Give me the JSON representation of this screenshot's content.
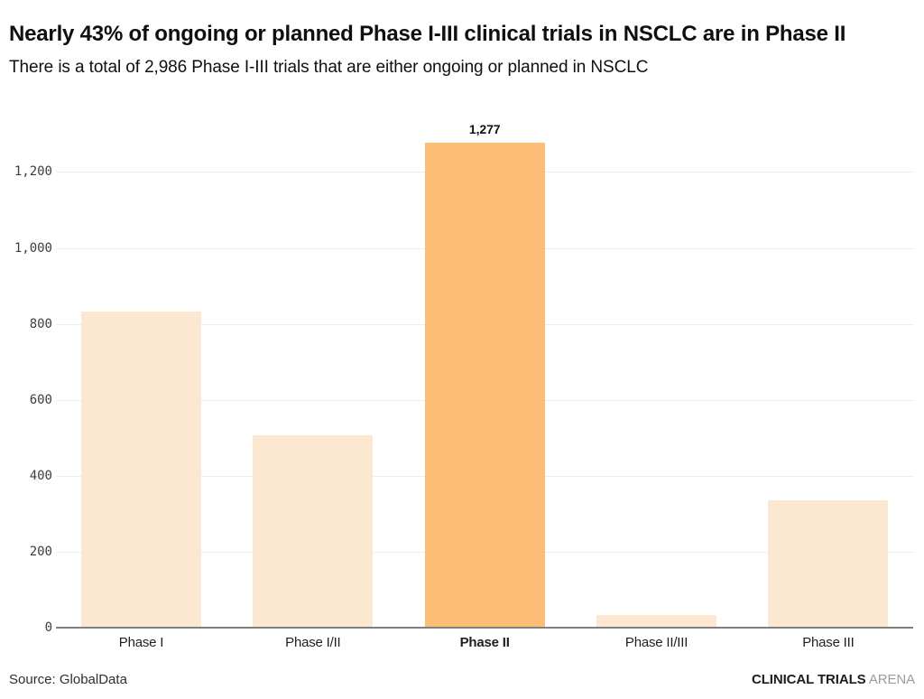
{
  "header": {
    "title": "Nearly 43% of ongoing or planned Phase I-III clinical trials in NSCLC are in Phase II",
    "subtitle": "There is a total of 2,986 Phase I-III trials that are either ongoing or planned in NSCLC"
  },
  "chart_data": {
    "type": "bar",
    "categories": [
      "Phase I",
      "Phase I/II",
      "Phase II",
      "Phase II/III",
      "Phase III"
    ],
    "values": [
      833,
      507,
      1277,
      34,
      335
    ],
    "total_stated": 2986,
    "highlight_index": 2,
    "data_labels": {
      "2": "1,277"
    },
    "title": "Nearly 43% of ongoing or planned Phase I-III clinical trials in NSCLC are in Phase II",
    "xlabel": "",
    "ylabel": "",
    "ylim": [
      0,
      1300
    ],
    "yticks": [
      0,
      200,
      400,
      600,
      800,
      1000,
      1200
    ],
    "ytick_labels": [
      "0",
      "200",
      "400",
      "600",
      "800",
      "1,000",
      "1,200"
    ],
    "grid": "horizontal",
    "legend": "none",
    "colors": {
      "bar_default": "#fce8d1",
      "bar_highlight": "#fcbe77",
      "gridline": "#ececec",
      "axis_line": "#7f7f7f",
      "value_label": "#111111"
    }
  },
  "footer": {
    "source": "Source: GlobalData",
    "brand_primary": "CLINICAL TRIALS",
    "brand_secondary": "ARENA"
  }
}
